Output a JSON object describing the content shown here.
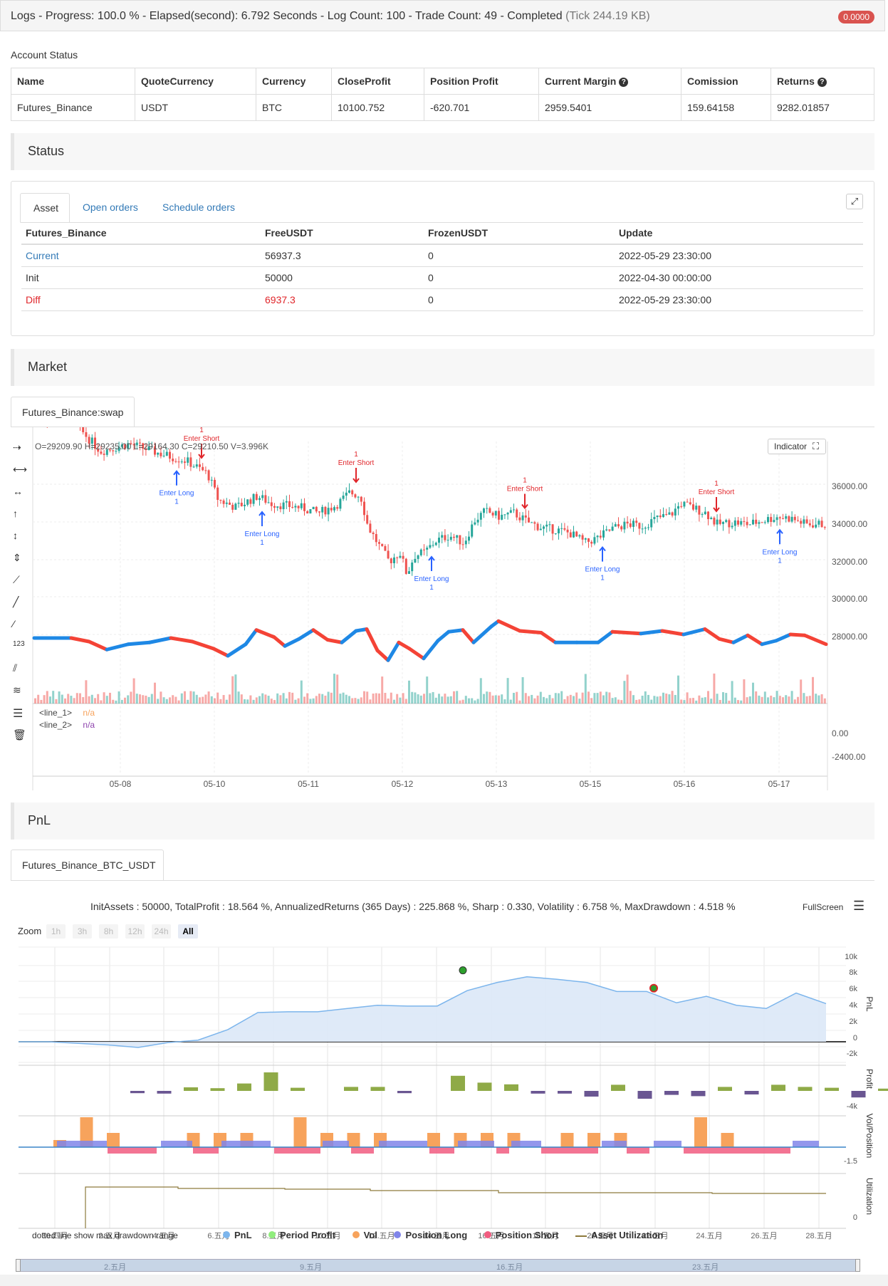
{
  "header": {
    "title": "Logs - Progress: 100.0 % - Elapsed(second): 6.792 Seconds - Log Count: 100 - Trade Count: 49 - Completed",
    "tick": "(Tick 244.19 KB)",
    "badge": "0.0000"
  },
  "account": {
    "label": "Account Status",
    "headers": [
      "Name",
      "QuoteCurrency",
      "Currency",
      "CloseProfit",
      "Position Profit",
      "Current Margin",
      "Comission",
      "Returns"
    ],
    "row": [
      "Futures_Binance",
      "USDT",
      "BTC",
      "10100.752",
      "-620.701",
      "2959.5401",
      "159.64158",
      "9282.01857"
    ]
  },
  "status": {
    "title": "Status",
    "tabs": [
      "Asset",
      "Open orders",
      "Schedule orders"
    ],
    "headers": [
      "Futures_Binance",
      "FreeUSDT",
      "FrozenUSDT",
      "Update"
    ],
    "rows": [
      [
        "Current",
        "56937.3",
        "0",
        "2022-05-29 23:30:00"
      ],
      [
        "Init",
        "50000",
        "0",
        "2022-04-30 00:00:00"
      ],
      [
        "Diff",
        "6937.3",
        "0",
        "2022-05-29 23:30:00"
      ]
    ]
  },
  "market": {
    "title": "Market",
    "tab": "Futures_Binance:swap",
    "ohlc": "O=29209.90 H=29235.00 L=29164.30 C=29210.50 V=3.996K",
    "indicator_btn": "Indicator",
    "legend": [
      {
        "name": "<line_1>",
        "value": "n/a"
      },
      {
        "name": "<line_2>",
        "value": "n/a"
      }
    ],
    "price_ticks": [
      "36000.00",
      "34000.00",
      "32000.00",
      "30000.00",
      "28000.00"
    ],
    "ind_ticks": [
      "0.00",
      "-2400.00"
    ],
    "dates": [
      "05-08",
      "05-10",
      "05-11",
      "05-12",
      "05-13",
      "05-15",
      "05-16",
      "05-17"
    ],
    "signal_qty": "1",
    "enter_short": "Enter Short",
    "enter_long": "Enter Long",
    "enter_short_cut": "Enter",
    "colors": {
      "up": "#26a69a",
      "down": "#ef5350",
      "line_up": "#1e88e5",
      "line_down": "#f44336",
      "long": "#2962ff",
      "short": "#e0252a"
    }
  },
  "pnl": {
    "title": "PnL",
    "tab": "Futures_Binance_BTC_USDT",
    "summary": "InitAssets : 50000, TotalProfit : 18.564 %, AnnualizedReturns (365 Days) : 225.868 %, Sharp : 0.330, Volatility : 6.758 %, MaxDrawdown : 4.518 %",
    "fullscreen": "FullScreen",
    "zoom_label": "Zoom",
    "zoom": [
      "1h",
      "3h",
      "8h",
      "12h",
      "24h",
      "All"
    ],
    "pnl_ticks": [
      "10k",
      "8k",
      "6k",
      "4k",
      "2k",
      "0",
      "-2k"
    ],
    "profit_tick": "-4k",
    "pos_tick": "-1.5",
    "util_tick": "0",
    "axis_titles": [
      "PnL",
      "Profit",
      "Vol/Position",
      "Utilization"
    ],
    "x_dates": [
      "30.四月",
      "2.五月",
      "4.五月",
      "6.五月",
      "8.五月",
      "10.五月",
      "12.五月",
      "14.五月",
      "16.五月",
      "18.五月",
      "20.五月",
      "22.五月",
      "24.五月",
      "26.五月",
      "28.五月"
    ],
    "nav_dates": [
      "2.五月",
      "9.五月",
      "16.五月",
      "23.五月"
    ],
    "legend_note": "dotted line show max drawdown range",
    "legend": [
      {
        "name": "PnL",
        "color": "#7cb5ec"
      },
      {
        "name": "Period Profit",
        "color": "#90ed7d"
      },
      {
        "name": "Vol",
        "color": "#f7a35c"
      },
      {
        "name": "Position Long",
        "color": "#8085e9"
      },
      {
        "name": "Position Short",
        "color": "#f15c80"
      },
      {
        "name": "Asset Utilization",
        "color": "#8d7a3c"
      }
    ]
  }
}
